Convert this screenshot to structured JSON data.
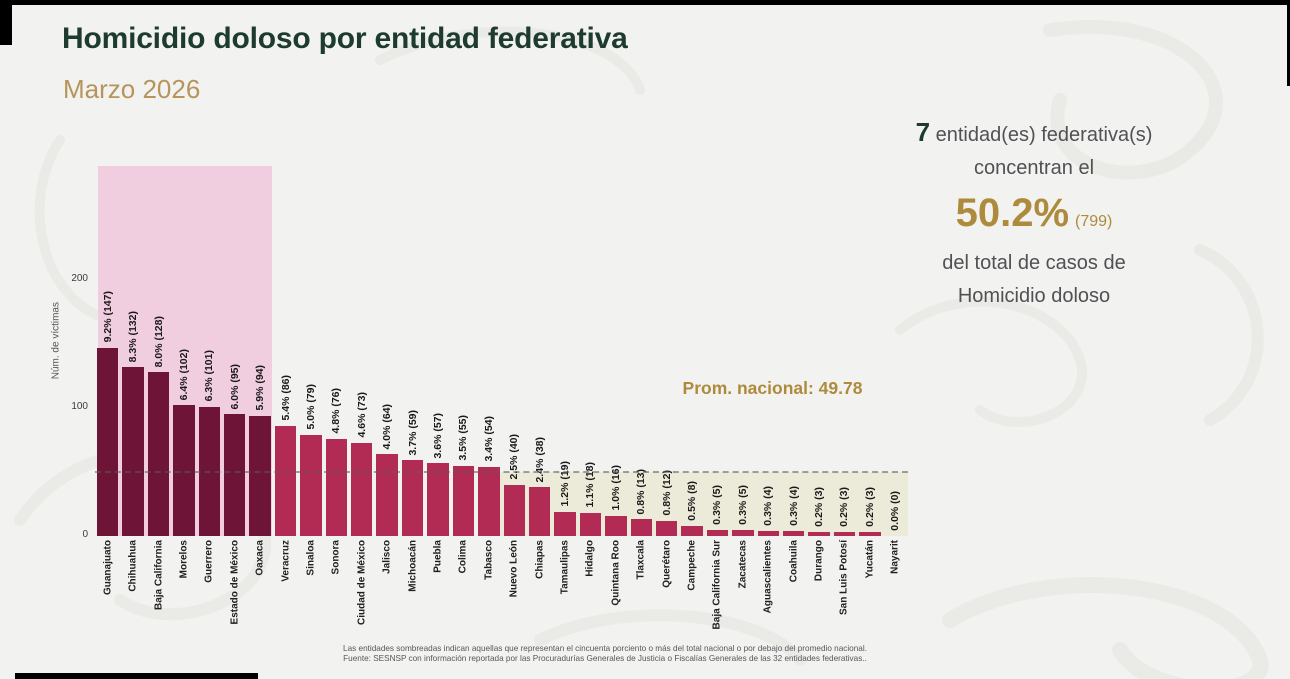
{
  "header": {
    "title": "Homicidio doloso por entidad federativa",
    "subtitle": "Marzo 2026"
  },
  "summary": {
    "count": "7",
    "line1_rest": " entidad(es) federativa(s)",
    "line2": "concentran el",
    "pct": "50.2%",
    "pct_n": "(799)",
    "line4": "del total de casos de",
    "line5": "Homicidio doloso"
  },
  "annotation": {
    "national_average_label": "Prom. nacional: 49.78"
  },
  "footer": {
    "line1": "Las entidades sombreadas indican aquellas que representan el cincuenta porciento o más del total nacional o por debajo del promedio nacional.",
    "line2": "Fuente: SESNSP con información reportada por las Procuradurías Generales de Justicia o Fiscalías Generales de las 32 entidades federativas.."
  },
  "colors": {
    "title_green": "#1d3b2e",
    "gold": "#ae8b3c",
    "gold_light": "#b6955c",
    "bar_dark": "#6e1537",
    "bar_light": "#b12b55",
    "shade_pink": "#f1cde0",
    "shade_beige": "#ecead8"
  },
  "chart_data": {
    "type": "bar",
    "title": "Homicidio doloso por entidad federativa",
    "subtitle": "Marzo 2026",
    "ylabel": "Núm. de víctimas",
    "xlabel": "",
    "yticks": [
      0,
      100,
      200
    ],
    "ylim": [
      0,
      290
    ],
    "grid": false,
    "legend": "none",
    "national_average": 49.78,
    "shaded_top_n": 7,
    "top7_total": 799,
    "top7_share_pct": 50.2,
    "categories": [
      "Guanajuato",
      "Chihuahua",
      "Baja California",
      "Morelos",
      "Guerrero",
      "Estado de México",
      "Oaxaca",
      "Veracruz",
      "Sinaloa",
      "Sonora",
      "Ciudad de México",
      "Jalisco",
      "Michoacán",
      "Puebla",
      "Colima",
      "Tabasco",
      "Nuevo León",
      "Chiapas",
      "Tamaulipas",
      "Hidalgo",
      "Quintana Roo",
      "Tlaxcala",
      "Querétaro",
      "Campeche",
      "Baja California Sur",
      "Zacatecas",
      "Aguascalientes",
      "Coahuila",
      "Durango",
      "San Luis Potosí",
      "Yucatán",
      "Nayarit"
    ],
    "values": [
      147,
      132,
      128,
      102,
      101,
      95,
      94,
      86,
      79,
      76,
      73,
      64,
      59,
      57,
      55,
      54,
      40,
      38,
      19,
      18,
      16,
      13,
      12,
      8,
      5,
      5,
      4,
      4,
      3,
      3,
      3,
      0
    ],
    "percents": [
      9.2,
      8.3,
      8.0,
      6.4,
      6.3,
      6.0,
      5.9,
      5.4,
      5.0,
      4.8,
      4.6,
      4.0,
      3.7,
      3.6,
      3.5,
      3.4,
      2.5,
      2.4,
      1.2,
      1.1,
      1.0,
      0.8,
      0.8,
      0.5,
      0.3,
      0.3,
      0.3,
      0.3,
      0.2,
      0.2,
      0.2,
      0.0
    ],
    "bar_labels": [
      "9.2% (147)",
      "8.3% (132)",
      "8.0% (128)",
      "6.4% (102)",
      "6.3% (101)",
      "6.0% (95)",
      "5.9% (94)",
      "5.4% (86)",
      "5.0% (79)",
      "4.8% (76)",
      "4.6% (73)",
      "4.0% (64)",
      "3.7% (59)",
      "3.6% (57)",
      "3.5% (55)",
      "3.4% (54)",
      "2.5% (40)",
      "2.4% (38)",
      "1.2% (19)",
      "1.1% (18)",
      "1.0% (16)",
      "0.8% (13)",
      "0.8% (12)",
      "0.5% (8)",
      "0.3% (5)",
      "0.3% (5)",
      "0.3% (4)",
      "0.3% (4)",
      "0.2% (3)",
      "0.2% (3)",
      "0.2% (3)",
      "0.0% (0)"
    ]
  }
}
